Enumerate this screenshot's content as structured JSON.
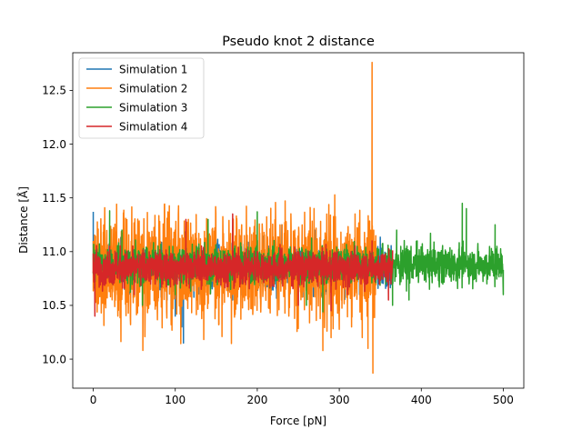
{
  "chart_data": {
    "type": "line",
    "title": "Pseudo knot 2 distance",
    "xlabel": "Force [pN]",
    "ylabel": "Distance [Å]",
    "xlim": [
      -25,
      525
    ],
    "ylim": [
      9.73,
      12.85
    ],
    "xticks": [
      0,
      100,
      200,
      300,
      400,
      500
    ],
    "yticks": [
      10.0,
      10.5,
      11.0,
      11.5,
      12.0,
      12.5
    ],
    "ytick_labels": [
      "10.0",
      "10.5",
      "11.0",
      "11.5",
      "12.0",
      "12.5"
    ],
    "grid": false,
    "legend_position": "top-left",
    "series": [
      {
        "name": "Simulation 1",
        "color": "#1f77b4",
        "x_range": [
          0,
          365
        ],
        "approx_mean": 10.85,
        "approx_min": 10.15,
        "approx_max": 11.38,
        "points": [
          [
            0,
            11.37
          ],
          [
            1,
            10.7
          ],
          [
            2,
            11.0
          ],
          [
            110,
            10.15
          ],
          [
            108,
            10.3
          ],
          [
            95,
            10.35
          ],
          [
            100,
            10.4
          ],
          [
            50,
            10.6
          ],
          [
            90,
            10.55
          ],
          [
            170,
            10.55
          ],
          [
            230,
            11.25
          ],
          [
            270,
            11.2
          ],
          [
            300,
            10.45
          ],
          [
            340,
            11.1
          ],
          [
            364,
            10.8
          ]
        ]
      },
      {
        "name": "Simulation 2",
        "color": "#ff7f0e",
        "x_range": [
          0,
          345
        ],
        "approx_mean": 10.85,
        "approx_min": 9.87,
        "approx_max": 12.76,
        "points": [
          [
            0,
            11.1
          ],
          [
            30,
            10.4
          ],
          [
            60,
            10.5
          ],
          [
            120,
            10.9
          ],
          [
            190,
            11.0
          ],
          [
            280,
            10.08
          ],
          [
            290,
            10.2
          ],
          [
            315,
            10.3
          ],
          [
            328,
            10.2
          ],
          [
            335,
            10.1
          ],
          [
            340,
            12.76
          ],
          [
            341,
            9.87
          ],
          [
            342,
            11.2
          ],
          [
            344,
            10.6
          ]
        ]
      },
      {
        "name": "Simulation 3",
        "color": "#2ca02c",
        "x_range": [
          0,
          500
        ],
        "approx_mean": 10.88,
        "approx_min": 10.44,
        "approx_max": 11.45,
        "points": [
          [
            0,
            10.8
          ],
          [
            20,
            11.38
          ],
          [
            35,
            11.2
          ],
          [
            60,
            10.5
          ],
          [
            100,
            10.6
          ],
          [
            140,
            11.3
          ],
          [
            180,
            11.0
          ],
          [
            200,
            11.37
          ],
          [
            260,
            10.5
          ],
          [
            280,
            10.44
          ],
          [
            300,
            11.0
          ],
          [
            365,
            10.5
          ],
          [
            370,
            11.2
          ],
          [
            385,
            10.55
          ],
          [
            395,
            11.1
          ],
          [
            410,
            10.65
          ],
          [
            430,
            11.0
          ],
          [
            445,
            10.8
          ],
          [
            450,
            11.45
          ],
          [
            455,
            11.4
          ],
          [
            470,
            11.0
          ],
          [
            480,
            10.7
          ],
          [
            490,
            11.25
          ],
          [
            500,
            10.6
          ]
        ]
      },
      {
        "name": "Simulation 4",
        "color": "#d62728",
        "x_range": [
          0,
          365
        ],
        "approx_mean": 10.85,
        "approx_min": 10.4,
        "approx_max": 11.35,
        "points": [
          [
            0,
            10.8
          ],
          [
            2,
            10.4
          ],
          [
            20,
            11.05
          ],
          [
            50,
            10.6
          ],
          [
            113,
            11.3
          ],
          [
            170,
            11.35
          ],
          [
            200,
            11.0
          ],
          [
            250,
            10.5
          ],
          [
            290,
            10.45
          ],
          [
            310,
            10.6
          ],
          [
            330,
            10.9
          ],
          [
            340,
            11.1
          ],
          [
            360,
            10.55
          ],
          [
            365,
            10.9
          ]
        ]
      }
    ]
  }
}
